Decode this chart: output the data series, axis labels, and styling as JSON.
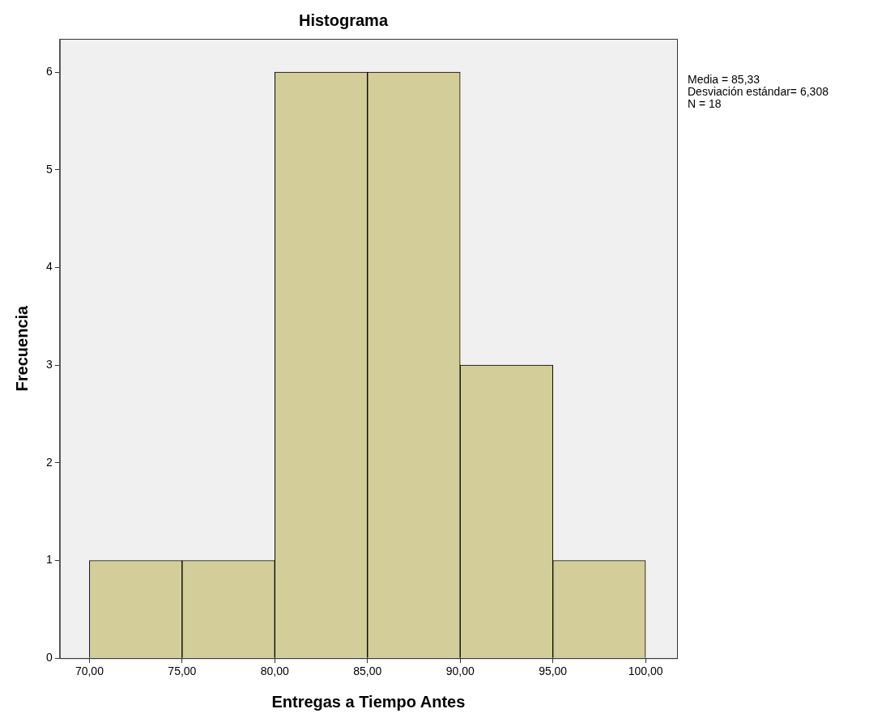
{
  "chart_data": {
    "type": "histogram",
    "title": "Histograma",
    "xlabel": "Entregas a Tiempo Antes",
    "ylabel": "Frecuencia",
    "bins": [
      70,
      75,
      80,
      85,
      90,
      95,
      100
    ],
    "values": [
      1,
      1,
      6,
      6,
      3,
      1
    ],
    "color": "#d3ce99",
    "xlim": [
      68.4,
      101.7
    ],
    "xticks": [
      {
        "value": 70,
        "label": "70,00"
      },
      {
        "value": 75,
        "label": "75,00"
      },
      {
        "value": 80,
        "label": "80,00"
      },
      {
        "value": 85,
        "label": "85,00"
      },
      {
        "value": 90,
        "label": "90,00"
      },
      {
        "value": 95,
        "label": "95,00"
      },
      {
        "value": 100,
        "label": "100,00"
      }
    ],
    "ylim": [
      0,
      6.34
    ],
    "yticks": [
      0,
      1,
      2,
      3,
      4,
      5,
      6
    ],
    "annotations": [
      "Media = 85,33",
      "Desviación estándar= 6,308",
      "N = 18"
    ]
  }
}
